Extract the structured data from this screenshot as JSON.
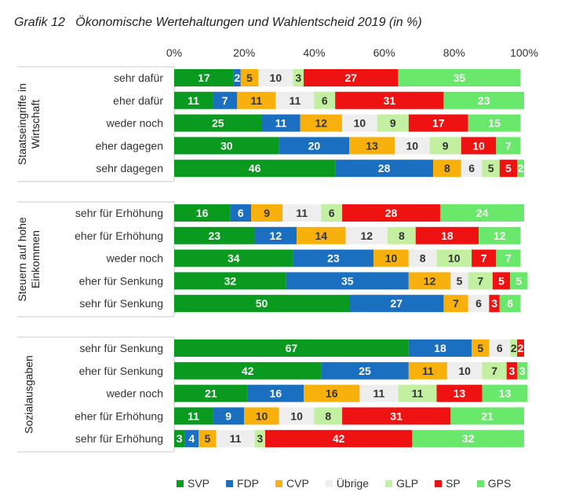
{
  "chart_data": {
    "type": "bar",
    "orientation": "horizontal-stacked-100",
    "title": "Grafik 12   Ökonomische Wertehaltungen und Wahlentscheid 2019 (in %)",
    "xlim": [
      0,
      100
    ],
    "x_ticks": [
      "0%",
      "20%",
      "40%",
      "60%",
      "80%",
      "100%"
    ],
    "legend_position": "bottom",
    "series": [
      {
        "name": "SVP",
        "color": "#0a9a1f"
      },
      {
        "name": "FDP",
        "color": "#1a6fc0"
      },
      {
        "name": "CVP",
        "color": "#f8b10c"
      },
      {
        "name": "Übrige",
        "color": "#eeeeee"
      },
      {
        "name": "GLP",
        "color": "#c2f0a0"
      },
      {
        "name": "SP",
        "color": "#ee1212"
      },
      {
        "name": "GPS",
        "color": "#69e86b"
      }
    ],
    "groups": [
      {
        "label_lines": [
          "Staatseingriffe in",
          "Wirtschaft"
        ],
        "rows": [
          {
            "label": "sehr dafür",
            "values": [
              17,
              2,
              5,
              10,
              3,
              27,
              35
            ]
          },
          {
            "label": "eher dafür",
            "values": [
              11,
              7,
              11,
              11,
              6,
              31,
              23
            ]
          },
          {
            "label": "weder noch",
            "values": [
              25,
              11,
              12,
              10,
              9,
              17,
              15
            ]
          },
          {
            "label": "eher dagegen",
            "values": [
              30,
              20,
              13,
              10,
              9,
              10,
              7
            ]
          },
          {
            "label": "sehr dagegen",
            "values": [
              46,
              28,
              8,
              6,
              5,
              5,
              2
            ]
          }
        ]
      },
      {
        "label_lines": [
          "Steuern auf hohe",
          "Einkommen"
        ],
        "rows": [
          {
            "label": "sehr für Erhöhung",
            "values": [
              16,
              6,
              9,
              11,
              6,
              28,
              24
            ]
          },
          {
            "label": "eher für Erhöhung",
            "values": [
              23,
              12,
              14,
              12,
              8,
              18,
              12
            ]
          },
          {
            "label": "weder noch",
            "values": [
              34,
              23,
              10,
              8,
              10,
              7,
              7
            ]
          },
          {
            "label": "eher für Senkung",
            "values": [
              32,
              35,
              12,
              5,
              7,
              5,
              5
            ]
          },
          {
            "label": "sehr für Senkung",
            "values": [
              50,
              27,
              7,
              6,
              0,
              3,
              6
            ]
          }
        ]
      },
      {
        "label_lines": [
          "Sozialausgaben"
        ],
        "rows": [
          {
            "label": "sehr für Senkung",
            "values": [
              67,
              18,
              5,
              6,
              2,
              2,
              0
            ]
          },
          {
            "label": "eher für Senkung",
            "values": [
              42,
              25,
              11,
              10,
              7,
              3,
              3
            ]
          },
          {
            "label": "weder noch",
            "values": [
              21,
              16,
              16,
              11,
              11,
              13,
              13
            ]
          },
          {
            "label": "eher für Erhöhung",
            "values": [
              11,
              9,
              10,
              10,
              8,
              31,
              21
            ]
          },
          {
            "label": "sehr für Erhöhung",
            "values": [
              3,
              4,
              5,
              11,
              3,
              42,
              32
            ]
          }
        ]
      }
    ]
  }
}
